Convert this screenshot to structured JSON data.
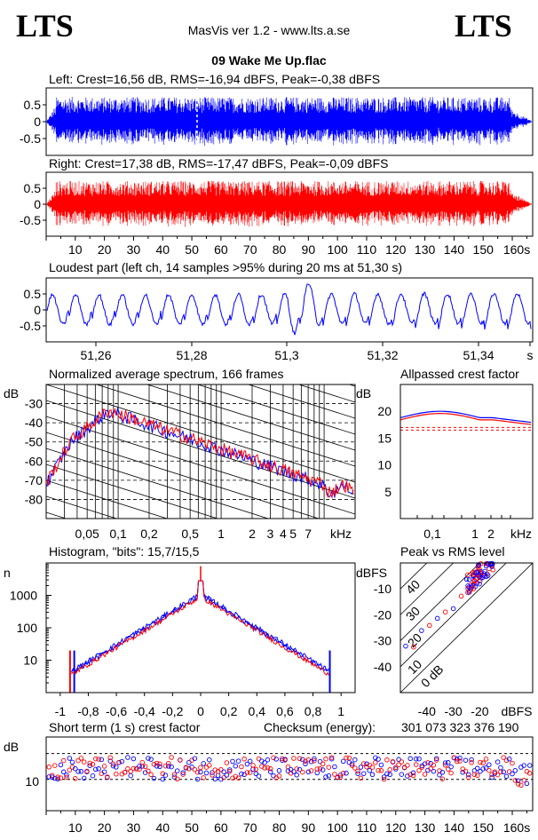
{
  "header": {
    "logo_left": "LTS",
    "logo_right": "LTS",
    "app_title": "MasVis ver 1.2 - www.lts.a.se",
    "file_name": "09 Wake Me Up.flac"
  },
  "colors": {
    "left": "#0000ff",
    "right": "#ff0000",
    "grid": "#000000"
  },
  "chart_data": [
    {
      "id": "waveform-left",
      "type": "area",
      "title": "Left: Crest=16,56 dB, RMS=-16,94 dBFS, Peak=-0,38 dBFS",
      "ylim": [
        -1,
        1
      ],
      "y_ticks": [
        "0.5",
        "0",
        "-0.5"
      ],
      "series": [
        {
          "name": "Left",
          "color": "#0000ff"
        }
      ]
    },
    {
      "id": "waveform-right",
      "type": "area",
      "title": "Right: Crest=17,38 dB, RMS=-17,47 dBFS, Peak=-0,09 dBFS",
      "ylim": [
        -1,
        1
      ],
      "y_ticks": [
        "0.5",
        "0",
        "-0.5"
      ],
      "xlim": [
        0,
        167
      ],
      "x_ticks": [
        "10",
        "20",
        "30",
        "40",
        "50",
        "60",
        "70",
        "80",
        "90",
        "100",
        "110",
        "120",
        "130",
        "140",
        "150",
        "160s"
      ],
      "series": [
        {
          "name": "Right",
          "color": "#ff0000"
        }
      ]
    },
    {
      "id": "loudest-part",
      "type": "line",
      "title": "Loudest part (left  ch, 14 samples >95% during 20 ms at 51,30 s)",
      "ylim": [
        -1,
        1
      ],
      "y_ticks": [
        "0.5",
        "0",
        "-0.5"
      ],
      "xlim": [
        51.245,
        51.347
      ],
      "x_ticks": [
        "51,26",
        "51,28",
        "51,3",
        "51,32",
        "51,34",
        "s"
      ]
    },
    {
      "id": "average-spectrum",
      "type": "line",
      "title": "Normalized average spectrum, 166 frames",
      "ylabel": "dB",
      "y_ticks": [
        "-30",
        "-40",
        "-50",
        "-60",
        "-70",
        "-80"
      ],
      "x_ticks": [
        "0,05",
        "0,1",
        "0,2",
        "0,5",
        "1",
        "2",
        "3",
        "4",
        "5",
        "7",
        "kHz"
      ],
      "ylim": [
        -90,
        -20
      ]
    },
    {
      "id": "allpassed-crest",
      "type": "line",
      "title": "Allpassed crest factor",
      "ylabel": "dB",
      "y_ticks": [
        "20",
        "15",
        "10",
        "5"
      ],
      "x_ticks": [
        "0,1",
        "1",
        "2",
        "kHz"
      ],
      "ylim": [
        0,
        25
      ]
    },
    {
      "id": "histogram",
      "type": "line",
      "title": "Histogram, \"bits\": 15,7/15,5",
      "ylabel": "n",
      "y_ticks": [
        "1000",
        "100",
        "10"
      ],
      "x_ticks": [
        "-1",
        "-0,8",
        "-0,6",
        "-0,4",
        "-0,2",
        "0",
        "0,2",
        "0,4",
        "0,6",
        "0,8",
        "1"
      ],
      "xlim": [
        -1.1,
        1.1
      ]
    },
    {
      "id": "peak-vs-rms",
      "type": "scatter",
      "title": "Peak vs RMS level",
      "ylabel": "dBFS",
      "xlabel": "dBFS",
      "y_ticks": [
        "-10",
        "-20",
        "-30",
        "-40"
      ],
      "x_ticks": [
        "-40",
        "-30",
        "-20"
      ],
      "diagonal_labels": [
        "40",
        "30",
        "20",
        "10",
        "0 dB"
      ],
      "xlim": [
        -50,
        0
      ],
      "ylim": [
        -50,
        0
      ]
    },
    {
      "id": "short-term-crest",
      "type": "scatter",
      "title": "Short term (1 s) crest factor",
      "checksum_label": "Checksum (energy):",
      "checksum_value": "301 073 323 376 190",
      "ylabel": "dB",
      "y_ticks": [
        "10"
      ],
      "x_ticks": [
        "10",
        "20",
        "30",
        "40",
        "50",
        "60",
        "70",
        "80",
        "90",
        "100",
        "110",
        "120",
        "130",
        "140",
        "150",
        "160s"
      ],
      "xlim": [
        0,
        167
      ]
    }
  ]
}
